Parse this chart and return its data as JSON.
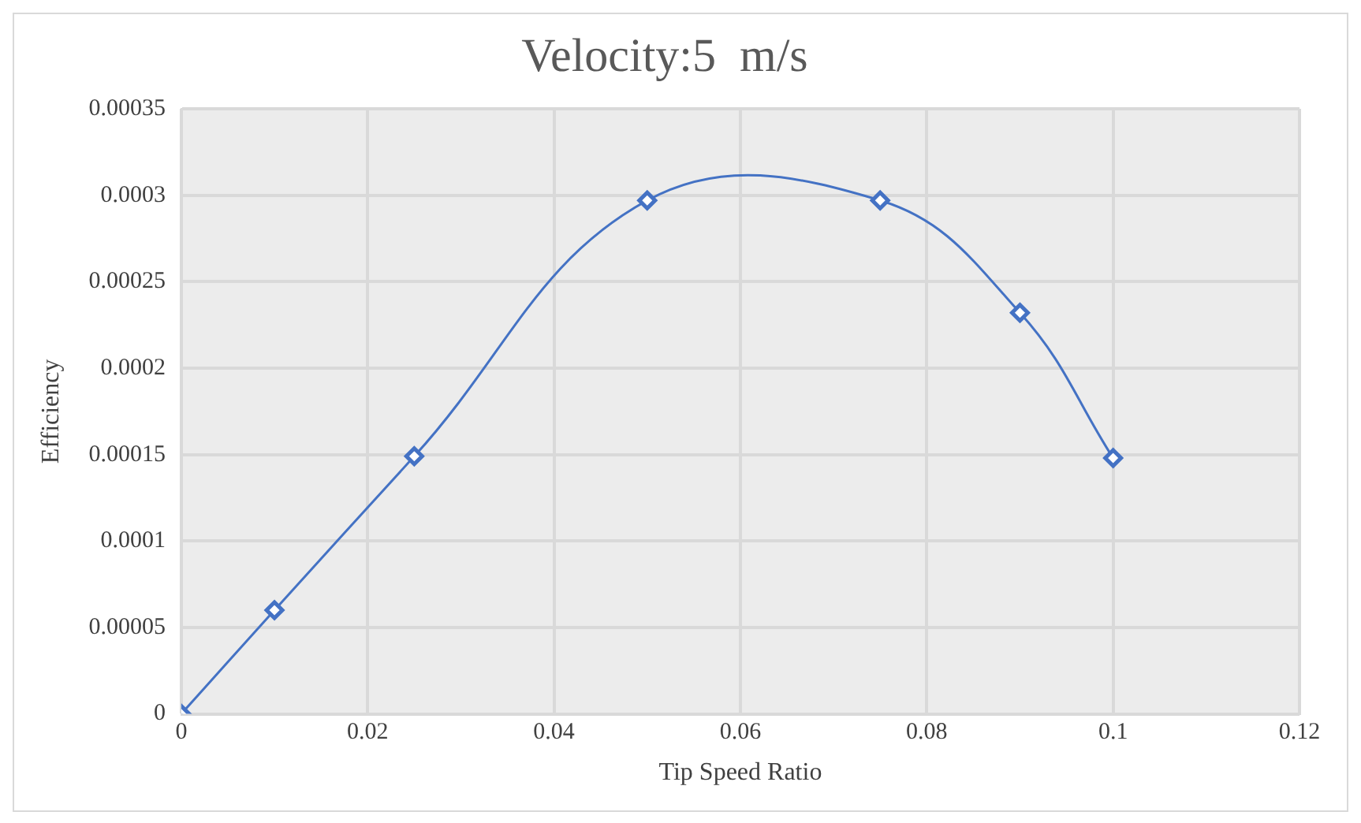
{
  "chart_data": {
    "type": "line",
    "title": "Velocity:5  m/s",
    "xlabel": "Tip Speed Ratio",
    "ylabel": "Efficiency",
    "x": [
      0,
      0.01,
      0.025,
      0.05,
      0.075,
      0.09,
      0.1
    ],
    "series": [
      {
        "color": "#4472c4",
        "values": [
          0,
          6e-05,
          0.000149,
          0.000297,
          0.000297,
          0.000232,
          0.000148
        ]
      }
    ],
    "xlim": [
      0,
      0.12
    ],
    "xticks": [
      0,
      0.02,
      0.04,
      0.06,
      0.08,
      0.1,
      0.12
    ],
    "ylim": [
      0,
      0.00035
    ],
    "yticks": [
      0,
      {
        "value": 5e-05,
        "label": "0.00005"
      },
      0.0001,
      0.00015,
      0.0002,
      0.00025,
      0.0003,
      0.00035
    ],
    "grid": true,
    "legend": false,
    "marker": "diamond",
    "line_style": "solid"
  }
}
